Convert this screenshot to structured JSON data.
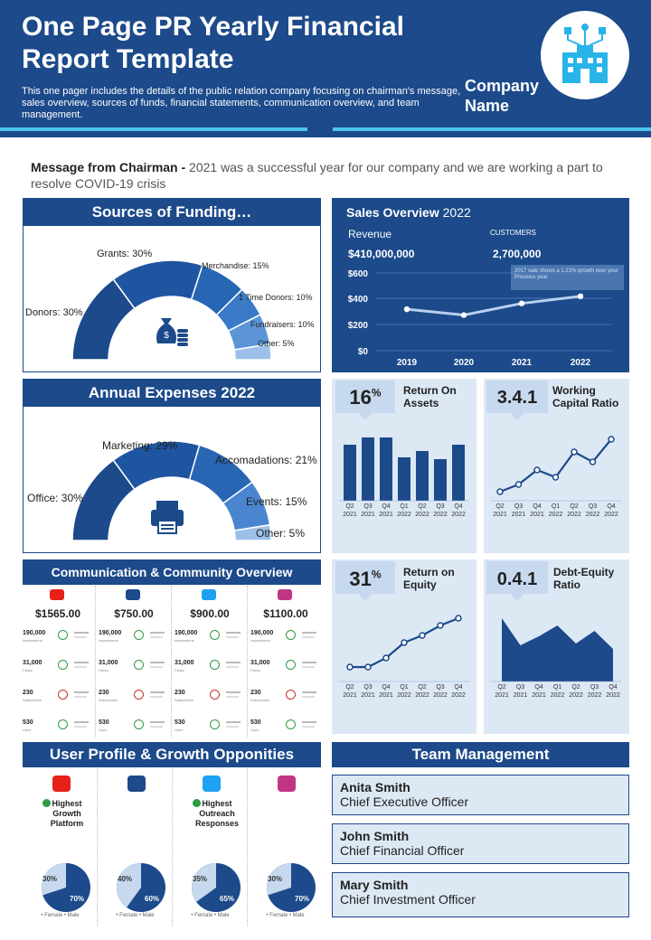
{
  "header": {
    "title": "One Page PR Yearly Financial Report Template",
    "subtitle": "This one pager includes the details of the public relation company focusing on chairman's message, sales overview, sources of funds, financial statements, communication overview,  and team management.",
    "company": "Company Name"
  },
  "message": {
    "label": "Message from Chairman -",
    "text": " 2021 was a successful year for our company and we are working a part to resolve COVID-19 crisis"
  },
  "funding": {
    "title": "Sources of Funding…",
    "items": [
      "Donors: 30%",
      "Grants: 30%",
      "Merchandise:  15%",
      "1 Time Donors: 10%",
      "Fundraisers: 10%",
      "Other: 5%"
    ]
  },
  "expenses": {
    "title": "Annual Expenses 2022",
    "items": [
      "Office: 30%",
      "Marketing: 29%",
      "Accomadations: 21%",
      "Events: 15%",
      "Other: 5%"
    ]
  },
  "sales": {
    "title_bold": "Sales Overview",
    "title_year": " 2022",
    "revenue_label": "Revenue",
    "revenue_value": "$410,000,000",
    "customers_label": "CUSTOMERS",
    "customers_value": "2,700,000",
    "note": "2017 sale shows a 1.21% growth over your Previous year",
    "yticks": [
      "$600",
      "$400",
      "$200",
      "$0"
    ],
    "xticks": [
      "2019",
      "2020",
      "2021",
      "2022"
    ]
  },
  "kpis": {
    "roa": {
      "value": "16",
      "unit": "%",
      "name": "Return On Assets"
    },
    "wcr": {
      "value": "3.4.1",
      "name": "Working Capital Ratio"
    },
    "roe": {
      "value": "31",
      "unit": "%",
      "name": "Return on Equity"
    },
    "der": {
      "value": "0.4.1",
      "name": "Debt-Equity Ratio"
    },
    "quarters": [
      [
        "Q2",
        "2021"
      ],
      [
        "Q3",
        "2021"
      ],
      [
        "Q4",
        "2021"
      ],
      [
        "Q1",
        "2022"
      ],
      [
        "Q2",
        "2022"
      ],
      [
        "Q3",
        "2022"
      ],
      [
        "Q4",
        "2022"
      ]
    ]
  },
  "communication": {
    "title": "Communication & Community Overview",
    "platforms": [
      "youtube-icon",
      "facebook-icon",
      "twitter-icon",
      "instagram-icon"
    ],
    "amounts": [
      "$1565.00",
      "$750.00",
      "$900.00",
      "$1100.00"
    ],
    "rows": [
      {
        "value": "190,000",
        "label": "Impressions"
      },
      {
        "value": "31,000",
        "label": "Clicks"
      },
      {
        "value": "230",
        "label": "Subscribers"
      },
      {
        "value": "530",
        "label": "Likes"
      }
    ]
  },
  "user_profile": {
    "title": "User Profile & Growth Opponities",
    "notes": [
      "Highest Growth Platform",
      "",
      "Highest Outreach Responses",
      ""
    ],
    "pies": [
      {
        "female": "30%",
        "male": "70%"
      },
      {
        "female": "40%",
        "male": "60%"
      },
      {
        "female": "35%",
        "male": "65%"
      },
      {
        "female": "30%",
        "male": "70%"
      }
    ],
    "legend": "• Female  • Male"
  },
  "team": {
    "title": "Team Management",
    "members": [
      {
        "name": "Anita  Smith",
        "role": "Chief Executive Officer"
      },
      {
        "name": "John Smith",
        "role": "Chief Financial Officer"
      },
      {
        "name": "Mary Smith",
        "role": "Chief Investment Officer"
      }
    ]
  },
  "colors": {
    "navy": "#1c4a8a",
    "accent": "#4dc3ef",
    "light": "#dde8f5"
  }
}
